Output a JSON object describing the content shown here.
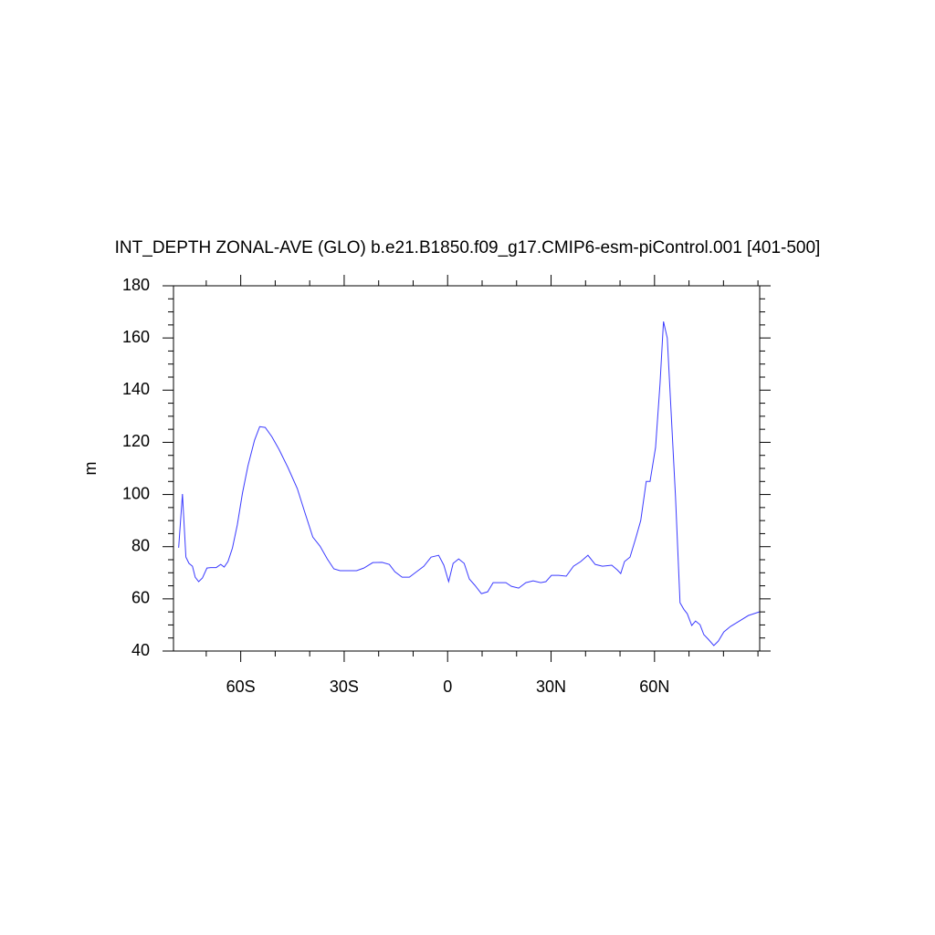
{
  "chart_data": {
    "type": "line",
    "title": "INT_DEPTH ZONAL-AVE (GLO) b.e21.B1850.f09_g17.CMIP6-esm-piControl.001 [401-500]",
    "y_label": "m",
    "x": [
      -78,
      -76.9,
      -75.9,
      -75,
      -74,
      -73.2,
      -72.2,
      -71.1,
      -69.8,
      -68.7,
      -67.1,
      -65.8,
      -64.8,
      -63.7,
      -62.4,
      -61,
      -59.5,
      -57.9,
      -56,
      -54.5,
      -52.9,
      -51,
      -48.9,
      -46.3,
      -43.6,
      -41.5,
      -39.1,
      -37,
      -34.9,
      -33,
      -31.2,
      -29.1,
      -26.4,
      -24.3,
      -21.7,
      -19,
      -16.9,
      -15.3,
      -13.2,
      -11.1,
      -9,
      -6.9,
      -4.8,
      -2.6,
      -1.1,
      0.3,
      1.6,
      3.2,
      4.8,
      6.3,
      7.9,
      9.8,
      11.6,
      13.2,
      15.3,
      16.9,
      18.5,
      20.6,
      22.7,
      24.8,
      27,
      28.5,
      30.1,
      32.2,
      34.4,
      36.5,
      38.6,
      40.7,
      42.8,
      44.9,
      47.6,
      49.2,
      50.2,
      51.3,
      52.9,
      54.5,
      56,
      57.6,
      58.7,
      60.3,
      61.6,
      62.6,
      63.7,
      64.8,
      66.1,
      67.4,
      68.5,
      69.5,
      70.8,
      71.9,
      73.2,
      74.3,
      75.6,
      77.2,
      78.5,
      80.1,
      82,
      84.6,
      87.2,
      90.4
    ],
    "series": [
      {
        "color": "#3b3bff",
        "values": [
          79.6,
          100.2,
          76,
          73.6,
          72.5,
          68.3,
          66.6,
          68,
          71.8,
          72,
          72,
          73.2,
          72.2,
          74.3,
          79.5,
          88.3,
          100.5,
          111,
          120.8,
          126,
          125.7,
          122.2,
          117.3,
          110.3,
          102.3,
          93.5,
          83.7,
          80.2,
          75.3,
          71.5,
          70.8,
          70.8,
          70.8,
          71.8,
          73.9,
          74,
          73.2,
          70.4,
          68.3,
          68.3,
          70.4,
          72.5,
          76,
          76.7,
          72.9,
          66.6,
          73.6,
          75.3,
          73.6,
          67.6,
          65.2,
          62,
          62.7,
          66.2,
          66.2,
          66.2,
          64.8,
          64.1,
          66.2,
          66.9,
          66.2,
          66.6,
          69,
          69,
          68.7,
          72.5,
          74.3,
          76.7,
          73.2,
          72.5,
          72.9,
          71.1,
          69.7,
          74.3,
          76,
          83,
          90,
          105,
          105,
          118,
          142.5,
          166.3,
          160,
          132,
          98.8,
          58.5,
          56,
          54.3,
          49.8,
          51.5,
          50.1,
          46.3,
          44.5,
          42.1,
          43.8,
          47.3,
          49.4,
          51.5,
          53.6,
          55
        ]
      }
    ],
    "xlim": [
      -79.5,
      90.5
    ],
    "ylim": [
      40,
      180
    ],
    "xticks": [
      {
        "value": -60,
        "label": "60S"
      },
      {
        "value": -30,
        "label": "30S"
      },
      0,
      {
        "value": 30,
        "label": "30N"
      },
      {
        "value": 60,
        "label": "60N"
      }
    ],
    "xminorticks": [
      -70,
      -50,
      -40,
      -20,
      -10,
      10,
      20,
      40,
      50,
      70,
      80,
      90
    ],
    "yticks": [
      40,
      60,
      80,
      100,
      120,
      140,
      160,
      180
    ],
    "yminorticks": [
      45,
      50,
      55,
      65,
      70,
      75,
      85,
      90,
      95,
      105,
      110,
      115,
      125,
      130,
      135,
      145,
      150,
      155,
      165,
      170,
      175
    ]
  }
}
